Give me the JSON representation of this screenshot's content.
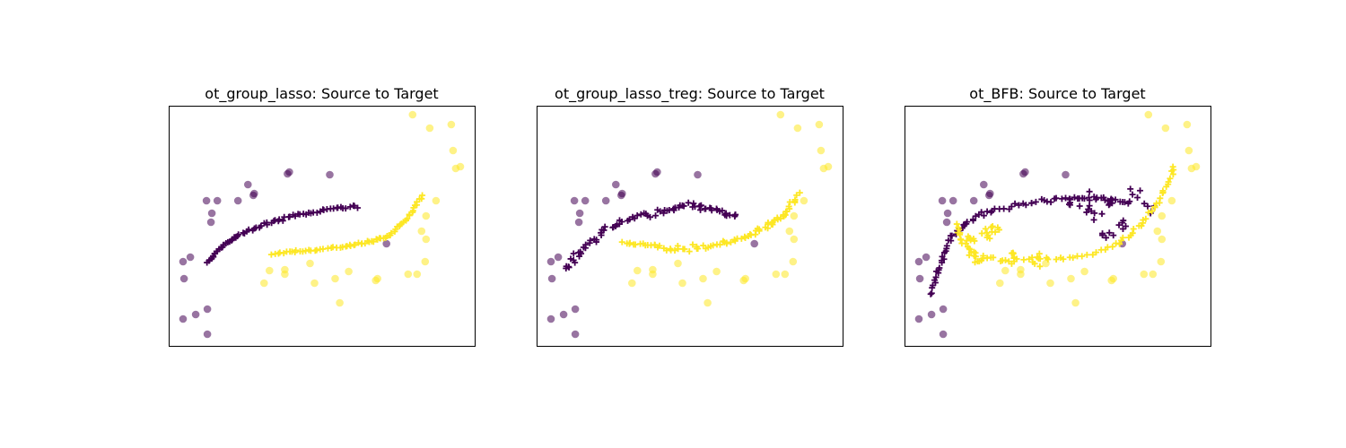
{
  "colors": {
    "source": "#440154",
    "target": "#fde725"
  },
  "chart_data": [
    {
      "type": "scatter",
      "title": "ot_group_lasso: Source to Target",
      "xticks": "none",
      "yticks": "none",
      "legend": "none",
      "grid": false,
      "xlim": [
        0,
        340
      ],
      "ylim": [
        0,
        268
      ],
      "series": [
        {
          "marker": "circle",
          "color": "source",
          "alpha": 0.55,
          "points": [
            [
              17,
              75
            ],
            [
              16,
              30
            ],
            [
              43,
              41
            ],
            [
              16,
              94
            ],
            [
              24,
              99
            ],
            [
              48,
              148
            ],
            [
              47,
              138
            ],
            [
              42,
              162
            ],
            [
              54,
              162
            ],
            [
              77,
              162
            ],
            [
              94,
              168
            ],
            [
              88,
              180
            ],
            [
              132,
              192
            ],
            [
              134,
              194
            ],
            [
              179,
              191
            ],
            [
              95,
              170
            ],
            [
              242,
              114
            ],
            [
              30,
              35
            ],
            [
              43,
              13
            ]
          ]
        },
        {
          "marker": "circle",
          "color": "target",
          "alpha": 0.55,
          "points": [
            [
              271,
              258
            ],
            [
              290,
              243
            ],
            [
              314,
              247
            ],
            [
              316,
              218
            ],
            [
              319,
              198
            ],
            [
              324,
              200
            ],
            [
              297,
              162
            ],
            [
              286,
              145
            ],
            [
              281,
              128
            ],
            [
              286,
              119
            ],
            [
              285,
              94
            ],
            [
              276,
              80
            ],
            [
              266,
              80
            ],
            [
              232,
              75
            ],
            [
              230,
              73
            ],
            [
              200,
              83
            ],
            [
              185,
              75
            ],
            [
              162,
              70
            ],
            [
              157,
              92
            ],
            [
              129,
              85
            ],
            [
              112,
              84
            ],
            [
              106,
              70
            ],
            [
              129,
              80
            ],
            [
              190,
              48
            ]
          ]
        },
        {
          "marker": "plus",
          "color": "source",
          "curve": [
            [
              43,
              93
            ],
            [
              58,
              110
            ],
            [
              78,
              124
            ],
            [
              110,
              137
            ],
            [
              140,
              145
            ],
            [
              175,
              152
            ],
            [
              210,
              156
            ]
          ],
          "n": 70,
          "jitter": 2
        },
        {
          "marker": "plus",
          "color": "target",
          "curve": [
            [
              115,
              103
            ],
            [
              150,
              106
            ],
            [
              190,
              110
            ],
            [
              220,
              115
            ],
            [
              245,
              123
            ],
            [
              265,
              142
            ],
            [
              282,
              167
            ]
          ],
          "n": 70,
          "jitter": 2
        }
      ]
    },
    {
      "type": "scatter",
      "title": "ot_group_lasso_treg: Source to Target",
      "xticks": "none",
      "yticks": "none",
      "legend": "none",
      "grid": false,
      "xlim": [
        0,
        340
      ],
      "ylim": [
        0,
        268
      ],
      "series": [
        {
          "marker": "circle",
          "color": "source",
          "alpha": 0.55,
          "points": [
            [
              17,
              75
            ],
            [
              16,
              30
            ],
            [
              43,
              41
            ],
            [
              16,
              94
            ],
            [
              24,
              99
            ],
            [
              48,
              148
            ],
            [
              47,
              138
            ],
            [
              42,
              162
            ],
            [
              54,
              162
            ],
            [
              77,
              162
            ],
            [
              94,
              168
            ],
            [
              88,
              180
            ],
            [
              132,
              192
            ],
            [
              134,
              194
            ],
            [
              179,
              191
            ],
            [
              95,
              170
            ],
            [
              242,
              114
            ],
            [
              30,
              35
            ],
            [
              43,
              13
            ]
          ]
        },
        {
          "marker": "circle",
          "color": "target",
          "alpha": 0.55,
          "points": [
            [
              271,
              258
            ],
            [
              290,
              243
            ],
            [
              314,
              247
            ],
            [
              316,
              218
            ],
            [
              319,
              198
            ],
            [
              324,
              200
            ],
            [
              297,
              162
            ],
            [
              286,
              145
            ],
            [
              281,
              128
            ],
            [
              286,
              119
            ],
            [
              285,
              94
            ],
            [
              276,
              80
            ],
            [
              266,
              80
            ],
            [
              232,
              75
            ],
            [
              230,
              73
            ],
            [
              200,
              83
            ],
            [
              185,
              75
            ],
            [
              162,
              70
            ],
            [
              157,
              92
            ],
            [
              129,
              85
            ],
            [
              112,
              84
            ],
            [
              106,
              70
            ],
            [
              129,
              80
            ],
            [
              190,
              48
            ]
          ]
        },
        {
          "marker": "plus",
          "color": "source",
          "curve": [
            [
              33,
              85
            ],
            [
              50,
              108
            ],
            [
              75,
              128
            ],
            [
              105,
              143
            ],
            [
              140,
              150
            ],
            [
              170,
              157
            ],
            [
              195,
              152
            ],
            [
              222,
              145
            ]
          ],
          "n": 80,
          "jitter": 4
        },
        {
          "marker": "plus",
          "color": "target",
          "curve": [
            [
              97,
              115
            ],
            [
              130,
              111
            ],
            [
              165,
              108
            ],
            [
              200,
              112
            ],
            [
              230,
              120
            ],
            [
              255,
              133
            ],
            [
              272,
              145
            ],
            [
              292,
              168
            ]
          ],
          "n": 80,
          "jitter": 4
        }
      ]
    },
    {
      "type": "scatter",
      "title": "ot_BFB: Source to Target",
      "xticks": "none",
      "yticks": "none",
      "legend": "none",
      "grid": false,
      "xlim": [
        0,
        340
      ],
      "ylim": [
        0,
        268
      ],
      "series": [
        {
          "marker": "circle",
          "color": "source",
          "alpha": 0.55,
          "points": [
            [
              17,
              75
            ],
            [
              16,
              30
            ],
            [
              43,
              41
            ],
            [
              16,
              94
            ],
            [
              24,
              99
            ],
            [
              48,
              148
            ],
            [
              47,
              138
            ],
            [
              42,
              162
            ],
            [
              54,
              162
            ],
            [
              77,
              162
            ],
            [
              94,
              168
            ],
            [
              88,
              180
            ],
            [
              132,
              192
            ],
            [
              134,
              194
            ],
            [
              179,
              191
            ],
            [
              95,
              170
            ],
            [
              242,
              114
            ],
            [
              30,
              35
            ],
            [
              43,
              13
            ]
          ]
        },
        {
          "marker": "circle",
          "color": "target",
          "alpha": 0.55,
          "points": [
            [
              271,
              258
            ],
            [
              290,
              243
            ],
            [
              314,
              247
            ],
            [
              316,
              218
            ],
            [
              319,
              198
            ],
            [
              324,
              200
            ],
            [
              297,
              162
            ],
            [
              286,
              145
            ],
            [
              281,
              128
            ],
            [
              286,
              119
            ],
            [
              285,
              94
            ],
            [
              276,
              80
            ],
            [
              266,
              80
            ],
            [
              232,
              75
            ],
            [
              230,
              73
            ],
            [
              200,
              83
            ],
            [
              185,
              75
            ],
            [
              162,
              70
            ],
            [
              157,
              92
            ],
            [
              129,
              85
            ],
            [
              112,
              84
            ],
            [
              106,
              70
            ],
            [
              129,
              80
            ],
            [
              190,
              48
            ]
          ]
        },
        {
          "marker": "plus",
          "color": "source",
          "curve": [
            [
              30,
              58
            ],
            [
              38,
              88
            ],
            [
              50,
              118
            ],
            [
              70,
              140
            ],
            [
              100,
              152
            ],
            [
              140,
              160
            ],
            [
              180,
              165
            ],
            [
              215,
              165
            ],
            [
              250,
              160
            ]
          ],
          "n": 80,
          "jitter": 3
        },
        {
          "marker": "plus",
          "color": "source",
          "cluster": [
            [
              185,
              158
            ],
            [
              210,
              145
            ],
            [
              225,
              125
            ],
            [
              240,
              135
            ],
            [
              255,
              165
            ],
            [
              270,
              150
            ],
            [
              205,
              160
            ],
            [
              230,
              160
            ]
          ],
          "n": 40,
          "spread": 12
        },
        {
          "marker": "plus",
          "color": "target",
          "curve": [
            [
              60,
              135
            ],
            [
              65,
              115
            ],
            [
              80,
              100
            ],
            [
              110,
              95
            ],
            [
              150,
              98
            ],
            [
              190,
              98
            ],
            [
              230,
              110
            ],
            [
              255,
              127
            ],
            [
              275,
              150
            ],
            [
              290,
              175
            ],
            [
              300,
              200
            ]
          ],
          "n": 80,
          "jitter": 3
        },
        {
          "marker": "plus",
          "color": "target",
          "cluster": [
            [
              75,
              118
            ],
            [
              90,
              125
            ],
            [
              100,
              130
            ],
            [
              80,
              100
            ],
            [
              120,
              98
            ],
            [
              150,
              96
            ]
          ],
          "n": 35,
          "spread": 10
        }
      ]
    }
  ]
}
